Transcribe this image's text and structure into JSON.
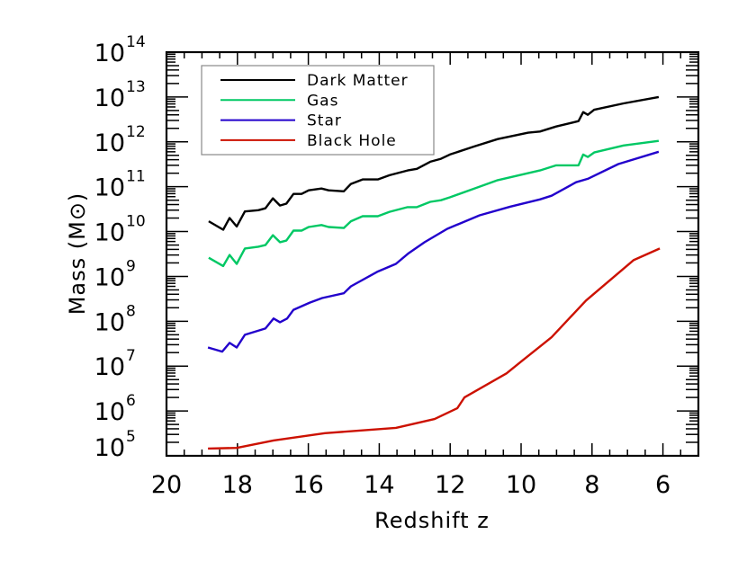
{
  "chart_data": {
    "type": "line",
    "xlabel": "Redshift z",
    "ylabel": "Mass (M⊙)",
    "xlim": [
      20,
      5
    ],
    "ylim": [
      100000.0,
      100000000000000.0
    ],
    "yscale": "log",
    "xticks": [
      20,
      18,
      16,
      14,
      12,
      10,
      8,
      6
    ],
    "xtick_labels": [
      "20",
      "18",
      "16",
      "14",
      "12",
      "10",
      "8",
      "6"
    ],
    "yticks": [
      100000.0,
      1000000.0,
      10000000.0,
      100000000.0,
      1000000000.0,
      10000000000.0,
      100000000000.0,
      1000000000000.0,
      10000000000000.0,
      100000000000000.0
    ],
    "ytick_exponents": [
      "5",
      "6",
      "7",
      "8",
      "9",
      "10",
      "11",
      "12",
      "13",
      "14"
    ],
    "ytick_base": "10",
    "grid": false,
    "legend_placement": "top-left",
    "series": [
      {
        "name": "Dark Matter",
        "color": "#000000",
        "x": [
          18.81,
          18.4,
          18.22,
          18.02,
          17.79,
          17.41,
          17.21,
          17.0,
          16.8,
          16.62,
          16.42,
          16.19,
          15.99,
          15.63,
          15.43,
          15.0,
          14.8,
          14.47,
          14.04,
          13.71,
          13.2,
          12.94,
          12.56,
          12.26,
          12.01,
          11.32,
          10.66,
          9.8,
          9.47,
          9.01,
          8.38,
          8.25,
          8.12,
          7.94,
          7.11,
          6.12
        ],
        "y": [
          17000000000.0,
          11000000000.0,
          20000000000.0,
          13000000000.0,
          28000000000.0,
          30000000000.0,
          33000000000.0,
          55000000000.0,
          38000000000.0,
          42000000000.0,
          69000000000.0,
          69000000000.0,
          83000000000.0,
          91000000000.0,
          83000000000.0,
          79000000000.0,
          115000000000.0,
          145000000000.0,
          145000000000.0,
          180000000000.0,
          230000000000.0,
          250000000000.0,
          360000000000.0,
          420000000000.0,
          520000000000.0,
          790000000000.0,
          1150000000000.0,
          1600000000000.0,
          1700000000000.0,
          2200000000000.0,
          2900000000000.0,
          4600000000000.0,
          4000000000000.0,
          5200000000000.0,
          7200000000000.0,
          10000000000000.0
        ]
      },
      {
        "name": "Gas",
        "color": "#00c864",
        "x": [
          18.81,
          18.4,
          18.22,
          18.02,
          17.79,
          17.41,
          17.21,
          17.0,
          16.8,
          16.62,
          16.42,
          16.19,
          15.99,
          15.63,
          15.43,
          15.0,
          14.8,
          14.47,
          14.04,
          13.71,
          13.2,
          12.94,
          12.56,
          12.26,
          12.01,
          11.32,
          10.66,
          9.8,
          9.47,
          9.01,
          8.38,
          8.25,
          8.12,
          7.94,
          7.11,
          6.12
        ],
        "y": [
          2600000000.0,
          1700000000.0,
          3000000000.0,
          1900000000.0,
          4200000000.0,
          4600000000.0,
          5000000000.0,
          8300000000.0,
          5800000000.0,
          6300000000.0,
          10500000000.0,
          10500000000.0,
          12600000000.0,
          14000000000.0,
          12600000000.0,
          12000000000.0,
          17000000000.0,
          22000000000.0,
          22000000000.0,
          27500000000.0,
          35000000000.0,
          35000000000.0,
          46000000000.0,
          50000000000.0,
          58000000000.0,
          91000000000.0,
          140000000000.0,
          200000000000.0,
          230000000000.0,
          300000000000.0,
          300000000000.0,
          520000000000.0,
          460000000000.0,
          580000000000.0,
          830000000000.0,
          1050000000000.0
        ]
      },
      {
        "name": "Star",
        "color": "#2200cc",
        "x": [
          18.83,
          18.43,
          18.22,
          18.02,
          17.79,
          17.21,
          16.98,
          16.8,
          16.6,
          16.42,
          15.96,
          15.61,
          15.0,
          14.8,
          14.06,
          13.53,
          13.17,
          12.72,
          12.08,
          11.17,
          10.3,
          9.47,
          9.14,
          8.45,
          8.12,
          7.26,
          6.12
        ],
        "y": [
          26000000.0,
          21000000.0,
          33000000.0,
          26000000.0,
          50000000.0,
          69000000.0,
          115000000.0,
          95000000.0,
          115000000.0,
          180000000.0,
          260000000.0,
          330000000.0,
          420000000.0,
          600000000.0,
          1260000000.0,
          1900000000.0,
          3300000000.0,
          5800000000.0,
          11500000000.0,
          23000000000.0,
          36000000000.0,
          52000000000.0,
          63000000000.0,
          126000000000.0,
          150000000000.0,
          320000000000.0,
          600000000000.0
        ]
      },
      {
        "name": "Black Hole",
        "color": "#cc1100",
        "x": [
          18.83,
          18.02,
          16.98,
          15.53,
          13.53,
          12.44,
          11.8,
          11.6,
          10.41,
          10.0,
          9.14,
          8.17,
          6.83,
          6.09
        ],
        "y": [
          145000.0,
          150000.0,
          220000.0,
          320000.0,
          420000.0,
          660000.0,
          1150000.0,
          2000000.0,
          6900000.0,
          12600000.0,
          44000000.0,
          290000000.0,
          2300000000.0,
          4200000000.0
        ]
      }
    ]
  }
}
